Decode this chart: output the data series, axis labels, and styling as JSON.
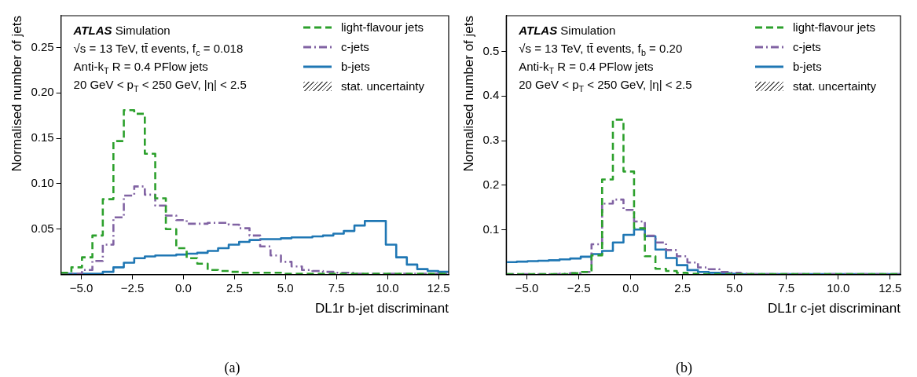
{
  "chart_data": [
    {
      "type": "histogram",
      "xlabel": "DL1r b-jet discriminant",
      "ylabel": "Normalised number of jets",
      "xlim": [
        -6,
        13
      ],
      "xticks": [
        {
          "value": -5,
          "label": "−5.0"
        },
        {
          "value": -2.5,
          "label": "−2.5"
        },
        {
          "value": 0,
          "label": "0.0"
        },
        {
          "value": 2.5,
          "label": "2.5"
        },
        {
          "value": 5,
          "label": "5.0"
        },
        {
          "value": 7.5,
          "label": "7.5"
        },
        {
          "value": 10,
          "label": "10.0"
        },
        {
          "value": 12.5,
          "label": "12.5"
        }
      ],
      "ylim": [
        0,
        0.285
      ],
      "yticks": [
        0.05,
        {
          "value": 0.1,
          "label": "0.10"
        },
        0.15,
        {
          "value": 0.2,
          "label": "0.20"
        },
        0.25
      ],
      "grid": false,
      "legend": "top right",
      "bins": [
        -6,
        -5.49,
        -4.97,
        -4.46,
        -3.95,
        -3.43,
        -2.92,
        -2.41,
        -1.89,
        -1.38,
        -0.86,
        -0.35,
        0.16,
        0.68,
        1.19,
        1.7,
        2.22,
        2.73,
        3.24,
        3.76,
        4.27,
        4.78,
        5.3,
        5.81,
        6.32,
        6.84,
        7.35,
        7.86,
        8.38,
        8.89,
        9.41,
        9.92,
        10.43,
        10.95,
        11.46,
        11.97,
        12.49,
        13
      ],
      "series": [
        {
          "name": "light-flavour jets",
          "color": "#2ca02c",
          "line_style": "dashed",
          "values": [
            0.002,
            0.008,
            0.019,
            0.043,
            0.083,
            0.147,
            0.181,
            0.177,
            0.133,
            0.084,
            0.05,
            0.029,
            0.018,
            0.012,
            0.005,
            0.004,
            0.003,
            0.002,
            0.002,
            0.002,
            0.002,
            0.001,
            0.001,
            0.001,
            0.001,
            0.001,
            0.001,
            0.001,
            0.001,
            0.001,
            0.001,
            0.001,
            0.001,
            0.001,
            0.001,
            0.001,
            0.001
          ]
        },
        {
          "name": "c-jets",
          "color": "#8163a3",
          "line_style": "dashdot",
          "values": [
            0.001,
            0.001,
            0.005,
            0.015,
            0.033,
            0.063,
            0.087,
            0.097,
            0.088,
            0.076,
            0.065,
            0.06,
            0.056,
            0.056,
            0.057,
            0.057,
            0.055,
            0.051,
            0.043,
            0.031,
            0.021,
            0.014,
            0.009,
            0.005,
            0.004,
            0.003,
            0.002,
            0.002,
            0.001,
            0.001,
            0.001,
            0.001,
            0.001,
            0.001,
            0.001,
            0.001,
            0.001
          ]
        },
        {
          "name": "b-jets",
          "color": "#1f77b4",
          "line_style": "solid",
          "values": [
            0.001,
            0.001,
            0.001,
            0.001,
            0.003,
            0.008,
            0.013,
            0.018,
            0.02,
            0.021,
            0.021,
            0.022,
            0.023,
            0.024,
            0.026,
            0.029,
            0.033,
            0.036,
            0.038,
            0.039,
            0.039,
            0.04,
            0.041,
            0.041,
            0.042,
            0.043,
            0.045,
            0.048,
            0.054,
            0.059,
            0.059,
            0.033,
            0.019,
            0.011,
            0.006,
            0.004,
            0.003
          ]
        }
      ],
      "annotations": [
        "ATLAS Simulation",
        "√s = 13 TeV, tt̄ events, f$_{c}$ = 0.018",
        "Anti-k$_{T}$ R = 0.4 PFlow jets",
        "20 GeV < p$_{T}$ < 250 GeV, |η| < 2.5",
        "stat. uncertainty",
        "(a)"
      ]
    },
    {
      "type": "histogram",
      "xlabel": "DL1r c-jet discriminant",
      "ylabel": "Normalised number of jets",
      "xlim": [
        -6,
        13
      ],
      "xticks": [
        {
          "value": -5,
          "label": "−5.0"
        },
        {
          "value": -2.5,
          "label": "−2.5"
        },
        {
          "value": 0,
          "label": "0.0"
        },
        {
          "value": 2.5,
          "label": "2.5"
        },
        {
          "value": 5,
          "label": "5.0"
        },
        {
          "value": 7.5,
          "label": "7.5"
        },
        {
          "value": 10,
          "label": "10.0"
        },
        {
          "value": 12.5,
          "label": "12.5"
        }
      ],
      "ylim": [
        0,
        0.58
      ],
      "yticks": [
        0.1,
        0.2,
        0.3,
        0.4,
        0.5
      ],
      "grid": false,
      "legend": "top right",
      "bins": [
        -6,
        -5.49,
        -4.97,
        -4.46,
        -3.95,
        -3.43,
        -2.92,
        -2.41,
        -1.89,
        -1.38,
        -0.86,
        -0.35,
        0.16,
        0.68,
        1.19,
        1.7,
        2.22,
        2.73,
        3.24,
        3.76,
        4.27,
        4.78,
        5.3,
        5.81,
        6.32,
        6.84,
        7.35,
        7.86,
        8.38,
        8.89,
        9.41,
        9.92,
        10.43,
        10.95,
        11.46,
        11.97,
        12.49,
        13
      ],
      "series": [
        {
          "name": "light-flavour jets",
          "color": "#2ca02c",
          "line_style": "dashed",
          "values": [
            0.001,
            0.001,
            0.001,
            0.001,
            0.001,
            0.001,
            0.003,
            0.006,
            0.043,
            0.213,
            0.347,
            0.231,
            0.104,
            0.041,
            0.013,
            0.008,
            0.004,
            0.002,
            0.001,
            0.001,
            0.001,
            0.001,
            0.001,
            0.001,
            0.001,
            0.001,
            0.001,
            0.001,
            0.001,
            0.001,
            0.001,
            0.001,
            0.001,
            0.001,
            0.001,
            0.001,
            0.001
          ]
        },
        {
          "name": "c-jets",
          "color": "#8163a3",
          "line_style": "dashdot",
          "values": [
            0.001,
            0.001,
            0.001,
            0.001,
            0.001,
            0.002,
            0.003,
            0.006,
            0.068,
            0.159,
            0.168,
            0.145,
            0.119,
            0.087,
            0.072,
            0.055,
            0.041,
            0.027,
            0.016,
            0.012,
            0.006,
            0.004,
            0.002,
            0.001,
            0.001,
            0.001,
            0.001,
            0.001,
            0.001,
            0.001,
            0.001,
            0.001,
            0.001,
            0.001,
            0.001,
            0.001,
            0.001
          ]
        },
        {
          "name": "b-jets",
          "color": "#1f77b4",
          "line_style": "solid",
          "values": [
            0.028,
            0.029,
            0.03,
            0.031,
            0.032,
            0.034,
            0.036,
            0.04,
            0.046,
            0.053,
            0.072,
            0.089,
            0.101,
            0.086,
            0.056,
            0.037,
            0.021,
            0.01,
            0.006,
            0.004,
            0.003,
            0.002,
            0.001,
            0.001,
            0.001,
            0.001,
            0.001,
            0.001,
            0.001,
            0.001,
            0.001,
            0.001,
            0.001,
            0.001,
            0.001,
            0.001,
            0.001
          ]
        }
      ],
      "annotations": [
        "ATLAS Simulation",
        "√s = 13 TeV, tt̄ events, f$_{b}$ = 0.20",
        "Anti-k$_{T}$ R = 0.4 PFlow jets",
        "20 GeV < p$_{T}$ < 250 GeV, |η| < 2.5",
        "stat. uncertainty",
        "(b)"
      ]
    }
  ]
}
